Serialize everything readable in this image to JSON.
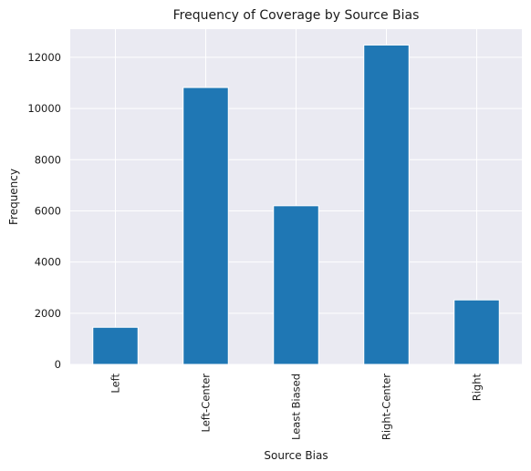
{
  "chart_data": {
    "type": "bar",
    "title": "Frequency of Coverage by Source Bias",
    "xlabel": "Source Bias",
    "ylabel": "Frequency",
    "categories": [
      "Left",
      "Left-Center",
      "Least Biased",
      "Right-Center",
      "Right"
    ],
    "values": [
      1450,
      10820,
      6200,
      12480,
      2520
    ],
    "ylim": [
      0,
      13100
    ],
    "yticks": [
      0,
      2000,
      4000,
      6000,
      8000,
      10000,
      12000
    ],
    "grid": true,
    "bar_color": "#1f77b4",
    "background_color": "#eaeaf2",
    "grid_color": "#ffffff"
  }
}
